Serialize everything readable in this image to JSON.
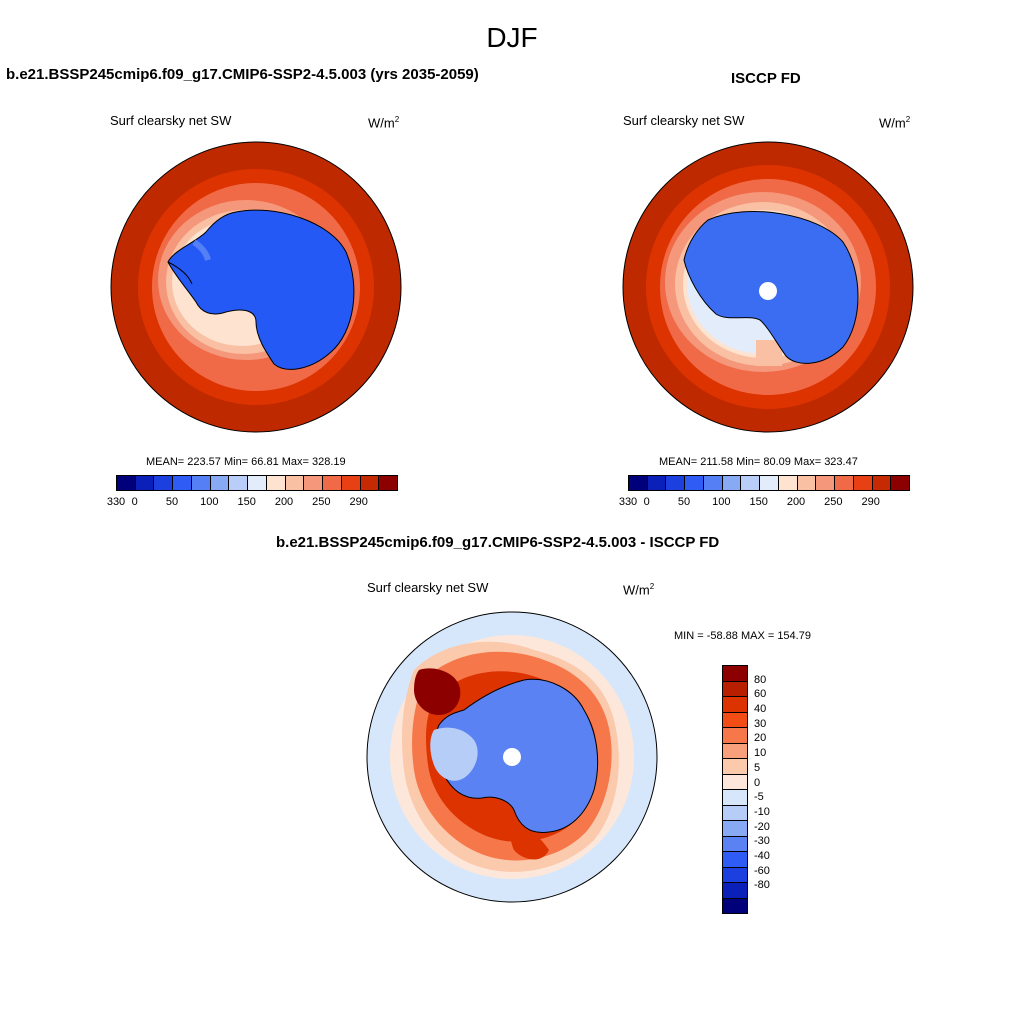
{
  "main_title": "DJF",
  "panels": {
    "model": {
      "title": "b.e21.BSSP245cmip6.f09_g17.CMIP6-SSP2-4.5.003 (yrs 2035-2059)",
      "field": "Surf clearsky net SW",
      "units": "W/m",
      "units_sup": "2",
      "stats": "MEAN= 223.57  Min=  66.81  Max= 328.19",
      "colorbar_ticks": [
        "0",
        "50",
        "100",
        "150",
        "200",
        "250",
        "290",
        "330"
      ]
    },
    "obs": {
      "title": "ISCCP FD",
      "field": "Surf clearsky net SW",
      "units": "W/m",
      "units_sup": "2",
      "stats": "MEAN= 211.58  Min=  80.09  Max= 323.47",
      "colorbar_ticks": [
        "0",
        "50",
        "100",
        "150",
        "200",
        "250",
        "290",
        "330"
      ]
    },
    "diff": {
      "title": "b.e21.BSSP245cmip6.f09_g17.CMIP6-SSP2-4.5.003 - ISCCP FD",
      "field": "Surf clearsky net SW",
      "units": "W/m",
      "units_sup": "2",
      "stats": "MIN = -58.88 MAX = 154.79",
      "colorbar_ticks": [
        "80",
        "60",
        "40",
        "30",
        "20",
        "10",
        "5",
        "0",
        "-5",
        "-10",
        "-20",
        "-30",
        "-40",
        "-60",
        "-80"
      ]
    }
  },
  "colors": {
    "abs_scale": [
      "#00007a",
      "#0a20b8",
      "#1c3fe0",
      "#2f5cf5",
      "#5580f5",
      "#88aaf5",
      "#b8cdf7",
      "#e2ecfb",
      "#fde3d0",
      "#f9c0a3",
      "#f5977a",
      "#f06a47",
      "#e84015",
      "#c62a03",
      "#8c0000"
    ],
    "diff_scale": [
      "#8c0000",
      "#b81e00",
      "#dd3300",
      "#f24d16",
      "#f5774a",
      "#f7a07b",
      "#fbc9ac",
      "#fde7da",
      "#d7e7fb",
      "#b5cdf7",
      "#88aaf5",
      "#5a82f2",
      "#2f5cf5",
      "#1c3fe0",
      "#0a20b8",
      "#00007a"
    ],
    "ocean_far": "#bf2900",
    "land_blue": "#2459f5",
    "obs_land_blue": "#3b6df2"
  }
}
